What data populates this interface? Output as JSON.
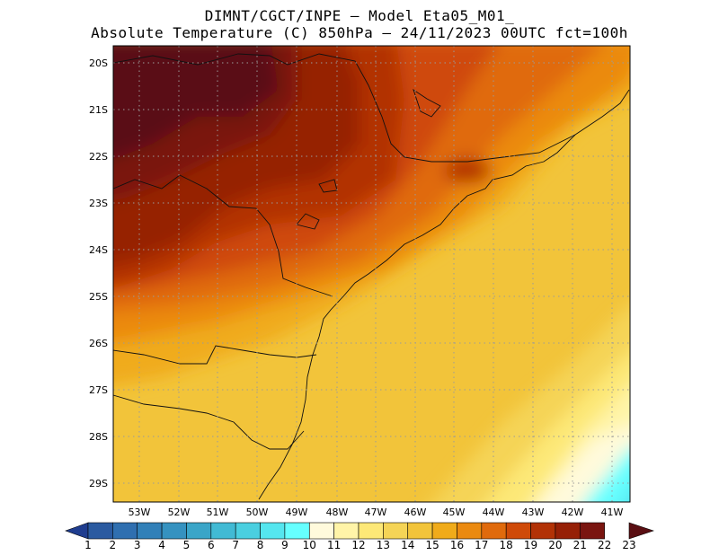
{
  "title_line1": "DIMNT/CGCT/INPE –  Model Eta05_M01_",
  "title_line2": "Absolute Temperature (C) 850hPa –  24/11/2023 00UTC fct=100h",
  "map": {
    "lon_range": [
      -53.9,
      -40.3
    ],
    "lat_range": [
      -29.4,
      -19.9
    ],
    "lat_ticks": [
      "20S",
      "21S",
      "22S",
      "23S",
      "24S",
      "25S",
      "26S",
      "27S",
      "28S",
      "29S"
    ],
    "lon_ticks": [
      "53W",
      "52W",
      "51W",
      "50W",
      "49W",
      "48W",
      "47W",
      "46W",
      "45W",
      "44W",
      "43W",
      "42W",
      "41W"
    ]
  },
  "colorbar": {
    "labels": [
      "1",
      "2",
      "3",
      "4",
      "5",
      "6",
      "7",
      "8",
      "9",
      "10",
      "11",
      "12",
      "13",
      "14",
      "15",
      "16",
      "17",
      "18",
      "19",
      "20",
      "21",
      "22",
      "23"
    ],
    "colors": [
      "#1f3d8f",
      "#2a5aa0",
      "#2f6fb0",
      "#3180b8",
      "#3592c0",
      "#3aa5c8",
      "#41bad4",
      "#4acfe0",
      "#55e6ef",
      "#66ffff",
      "#fffadc",
      "#fff4a8",
      "#fde877",
      "#f5d456",
      "#f2c43a",
      "#f0ab1a",
      "#eb8a10",
      "#e06a0c",
      "#cf4a08",
      "#b23206",
      "#962006",
      "#7a1510",
      "#5a0e12"
    ]
  }
}
